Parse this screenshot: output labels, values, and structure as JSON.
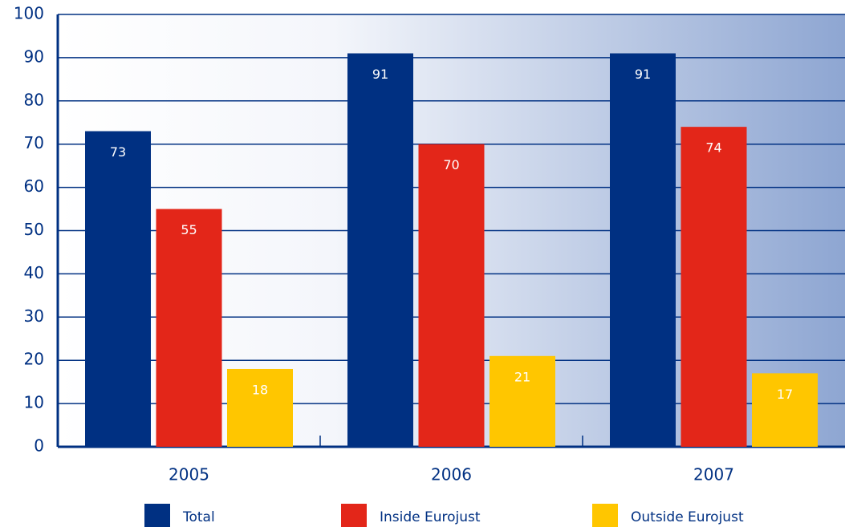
{
  "chart_data": {
    "type": "bar",
    "categories": [
      "2005",
      "2006",
      "2007"
    ],
    "series": [
      {
        "name": "Total",
        "color": "#003082",
        "values": [
          73,
          91,
          91
        ]
      },
      {
        "name": "Inside Eurojust",
        "color": "#e32619",
        "values": [
          55,
          70,
          74
        ]
      },
      {
        "name": "Outside Eurojust",
        "color": "#ffc600",
        "values": [
          18,
          21,
          17
        ]
      }
    ],
    "ylim": [
      0,
      100
    ],
    "yticks": [
      0,
      10,
      20,
      30,
      40,
      50,
      60,
      70,
      80,
      90,
      100
    ],
    "grid": true,
    "legend": "bottom"
  }
}
